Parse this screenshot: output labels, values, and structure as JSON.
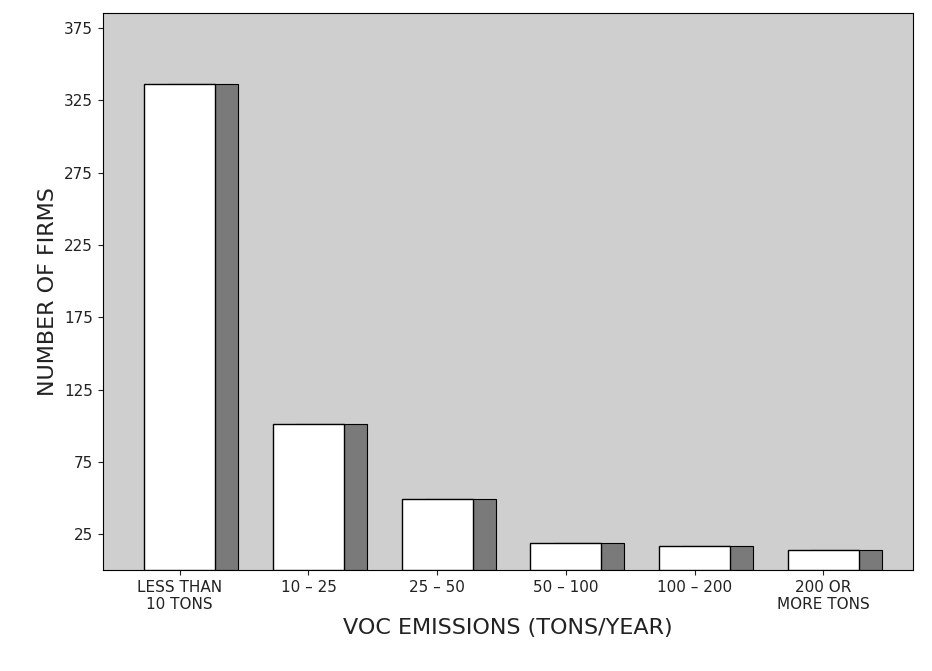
{
  "chart_data": {
    "type": "bar",
    "x_label": "VOC EMISSIONS (TONS/YEAR)",
    "y_label": "NUMBER OF FIRMS",
    "categories": [
      "LESS THAN\n10 TONS",
      "10 – 25",
      "25 – 50",
      "50 – 100",
      "100 – 200",
      "200 OR\nMORE TONS"
    ],
    "values": [
      336,
      101,
      49,
      19,
      17,
      14
    ],
    "color": "#ffffff",
    "ylim": [
      0,
      385
    ],
    "yticks": [
      25,
      75,
      125,
      175,
      225,
      275,
      325,
      375
    ],
    "grid": false
  }
}
